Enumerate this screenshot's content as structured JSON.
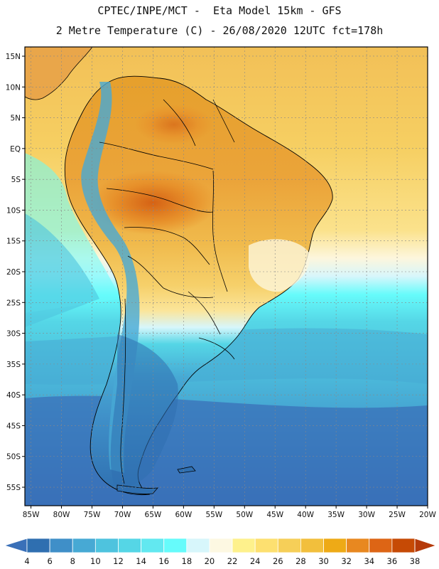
{
  "title_line1": "CPTEC/INPE/MCT -  Eta Model 15km - GFS",
  "title_line2": "2 Metre Temperature (C) - 26/08/2020 12UTC fct=178h",
  "lat_ticks": [
    {
      "label": "15N",
      "lat": 15
    },
    {
      "label": "10N",
      "lat": 10
    },
    {
      "label": "5N",
      "lat": 5
    },
    {
      "label": "EQ",
      "lat": 0
    },
    {
      "label": "5S",
      "lat": -5
    },
    {
      "label": "10S",
      "lat": -10
    },
    {
      "label": "15S",
      "lat": -15
    },
    {
      "label": "20S",
      "lat": -20
    },
    {
      "label": "25S",
      "lat": -25
    },
    {
      "label": "30S",
      "lat": -30
    },
    {
      "label": "35S",
      "lat": -35
    },
    {
      "label": "40S",
      "lat": -40
    },
    {
      "label": "45S",
      "lat": -45
    },
    {
      "label": "50S",
      "lat": -50
    },
    {
      "label": "55S",
      "lat": -55
    }
  ],
  "lon_ticks": [
    {
      "label": "85W",
      "lon": -85
    },
    {
      "label": "80W",
      "lon": -80
    },
    {
      "label": "75W",
      "lon": -75
    },
    {
      "label": "70W",
      "lon": -70
    },
    {
      "label": "65W",
      "lon": -65
    },
    {
      "label": "60W",
      "lon": -60
    },
    {
      "label": "55W",
      "lon": -55
    },
    {
      "label": "50W",
      "lon": -50
    },
    {
      "label": "45W",
      "lon": -45
    },
    {
      "label": "40W",
      "lon": -40
    },
    {
      "label": "35W",
      "lon": -35
    },
    {
      "label": "30W",
      "lon": -30
    },
    {
      "label": "25W",
      "lon": -25
    },
    {
      "label": "20W",
      "lon": -20
    }
  ],
  "map_extent": {
    "lon_min": -86,
    "lon_max": -20,
    "lat_min": -58,
    "lat_max": 16.5
  },
  "colorbar": {
    "labels": [
      "4",
      "6",
      "8",
      "10",
      "12",
      "14",
      "16",
      "18",
      "20",
      "22",
      "24",
      "26",
      "28",
      "30",
      "32",
      "34",
      "36",
      "38"
    ],
    "colors": [
      "#3a70b8",
      "#2f6fb0",
      "#3f8fc8",
      "#47a9d4",
      "#4ec3de",
      "#55d6e6",
      "#62e8f0",
      "#66fbfb",
      "#d7f6fb",
      "#fdf8e2",
      "#fef18c",
      "#fde070",
      "#f6cf58",
      "#f2bf3c",
      "#eeaa16",
      "#e88820",
      "#dd6515",
      "#c64a05",
      "#b53a0a"
    ]
  },
  "colors": {
    "land_dark": "#2a5fa6",
    "ocean_cold": "#3a70b8",
    "tropical_ocean": "#f3c85e",
    "hot_land": "#e9a33a"
  }
}
